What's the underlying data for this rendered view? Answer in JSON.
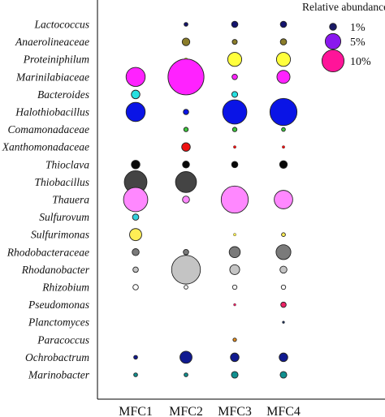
{
  "chart_data": {
    "type": "bubble",
    "title": "",
    "xlabel": "",
    "ylabel": "",
    "categories": [
      "MFC1",
      "MFC2",
      "MFC3",
      "MFC4"
    ],
    "taxa": [
      {
        "name": "Lactococcus",
        "color": "#14146e",
        "values": [
          0,
          0.3,
          0.8,
          0.8
        ]
      },
      {
        "name": "Anaerolineaceae",
        "color": "#8b7d2a",
        "values": [
          0,
          1.2,
          0.5,
          0.8
        ]
      },
      {
        "name": "Proteiniphilum",
        "color": "#ffff3c",
        "values": [
          0,
          0.2,
          4.0,
          4.0
        ]
      },
      {
        "name": "Marinilabiaceae",
        "color": "#ff22ff",
        "values": [
          7.5,
          26.5,
          0.6,
          3.5
        ]
      },
      {
        "name": "Bacteroides",
        "color": "#27e0e0",
        "values": [
          1.5,
          0,
          0.7,
          0
        ]
      },
      {
        "name": "Halothiobacillus",
        "color": "#0a14e6",
        "values": [
          7.5,
          0.6,
          12.0,
          15.0
        ]
      },
      {
        "name": "Comamonadaceae",
        "color": "#3ec83e",
        "values": [
          0,
          0.4,
          0.4,
          0.3
        ]
      },
      {
        "name": "Xanthomonadaceae",
        "color": "#ee1111",
        "values": [
          0,
          1.5,
          0.15,
          0.15
        ]
      },
      {
        "name": "Thioclava",
        "color": "#080808",
        "values": [
          1.5,
          1.0,
          0.8,
          1.2
        ]
      },
      {
        "name": "Thiobacillus",
        "color": "#444444",
        "values": [
          10.5,
          9.0,
          0,
          0
        ]
      },
      {
        "name": "Thauera",
        "color": "#ff88ff",
        "values": [
          12.0,
          1.0,
          15.0,
          7.0
        ]
      },
      {
        "name": "Sulfurovum",
        "color": "#33d0dd",
        "values": [
          0.8,
          0,
          0,
          0
        ]
      },
      {
        "name": "Sulfurimonas",
        "color": "#ffee55",
        "values": [
          3.0,
          0,
          0.15,
          0.3
        ]
      },
      {
        "name": "Rhodobacteraceae",
        "color": "#7a7a7a",
        "values": [
          1.0,
          0.6,
          2.5,
          4.5
        ]
      },
      {
        "name": "Rhodanobacter",
        "color": "#c4c4c4",
        "values": [
          0.6,
          17.0,
          2.0,
          1.0
        ]
      },
      {
        "name": "Rhizobium",
        "color": "#ffffff",
        "values": [
          0.6,
          0.3,
          0.4,
          0.4
        ]
      },
      {
        "name": "Pseudomonas",
        "color": "#ee2266",
        "values": [
          0,
          0,
          0.12,
          0.6
        ]
      },
      {
        "name": "Planctomyces",
        "color": "#203050",
        "values": [
          0,
          0,
          0,
          0.12
        ]
      },
      {
        "name": "Paracoccus",
        "color": "#e89020",
        "values": [
          0,
          0,
          0.25,
          0
        ]
      },
      {
        "name": "Ochrobactrum",
        "color": "#101a90",
        "values": [
          0.3,
          3.0,
          1.5,
          1.5
        ]
      },
      {
        "name": "Marinobacter",
        "color": "#109090",
        "values": [
          0.3,
          0.3,
          0.9,
          0.9
        ]
      }
    ],
    "legend": {
      "title": "Relative abundance",
      "placement": "top-right",
      "items": [
        {
          "label": "1%",
          "value": 1,
          "color": "#1a1a66"
        },
        {
          "label": "5%",
          "value": 5,
          "color": "#8a18ee"
        },
        {
          "label": "10%",
          "value": 10,
          "color": "#ff1499"
        }
      ]
    },
    "units": "% relative abundance",
    "grid": false
  }
}
